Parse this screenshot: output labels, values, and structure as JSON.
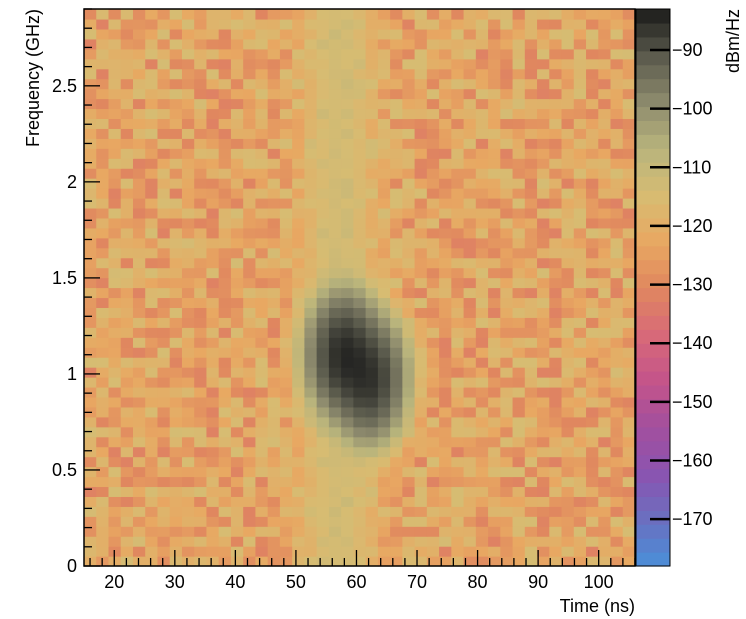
{
  "chart_data": {
    "type": "heatmap",
    "title": "",
    "xlabel": "Time (ns)",
    "ylabel": "Frequency (GHz)",
    "zlabel": "dBm/Hz",
    "xlim": [
      15,
      106
    ],
    "ylim": [
      0,
      2.9
    ],
    "zlim": [
      -178,
      -83
    ],
    "x_ticks": [
      20,
      30,
      40,
      50,
      60,
      70,
      80,
      90,
      100
    ],
    "x_tick_labels": [
      "20",
      "30",
      "40",
      "50",
      "60",
      "70",
      "80",
      "90",
      "100"
    ],
    "y_ticks": [
      0,
      0.5,
      1,
      1.5,
      2,
      2.5
    ],
    "y_tick_labels": [
      "0",
      "0.5",
      "1",
      "1.5",
      "2",
      "2.5"
    ],
    "z_ticks": [
      -90,
      -100,
      -110,
      -120,
      -130,
      -140,
      -150,
      -160,
      -170
    ],
    "z_tick_labels": [
      "−90",
      "−100",
      "−110",
      "−120",
      "−130",
      "−140",
      "−150",
      "−160",
      "−170"
    ],
    "grid": false,
    "legend": "colorbar-right",
    "colormap": [
      "#4a90d9",
      "#6a6fc0",
      "#8b54b0",
      "#a24f9e",
      "#c4548a",
      "#d86a78",
      "#e0875f",
      "#e8a862",
      "#d7bc72",
      "#b8b47c",
      "#8d8a6d",
      "#5a5a4c",
      "#1a1a1a"
    ],
    "grid_shape": {
      "time_bins": 45,
      "freq_bins": 56
    },
    "background_level_dbm_hz": -123,
    "features": [
      {
        "kind": "peak",
        "time_ns": 58,
        "freq_ghz": 1.1,
        "level_dbm_hz": -85
      },
      {
        "kind": "peak",
        "time_ns": 62,
        "freq_ghz": 0.98,
        "level_dbm_hz": -86
      },
      {
        "kind": "vertical_band",
        "time_ns": 57,
        "level_dbm_hz": -114
      }
    ]
  }
}
